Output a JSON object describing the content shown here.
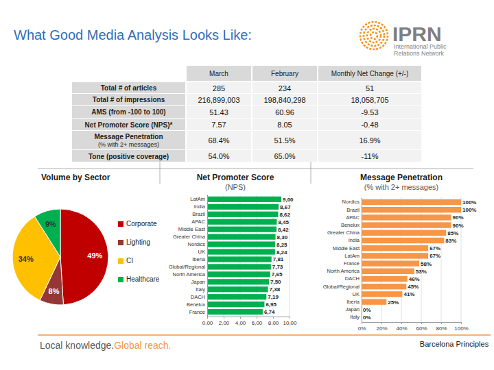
{
  "header": {
    "title": "What Good Media Analysis Looks Like:",
    "logo": {
      "name": "IPRN",
      "lines": [
        "International Public",
        "Relations Network"
      ]
    }
  },
  "table": {
    "columns": [
      "March",
      "February",
      "Monthly Net Change (+/-)"
    ],
    "rows": [
      {
        "label": [
          "Total # of articles"
        ],
        "cells": [
          "285",
          "234",
          "51"
        ]
      },
      {
        "label": [
          "Total # of impressions"
        ],
        "cells": [
          "216,899,003",
          "198,840,298",
          "18,058,705"
        ]
      },
      {
        "label": [
          "AMS (from -100 to 100)"
        ],
        "cells": [
          "51.43",
          "60.96",
          "-9.53"
        ]
      },
      {
        "label": [
          "Net Promoter Score (NPS)*"
        ],
        "cells": [
          "7.57",
          "8.05",
          "-0.48"
        ]
      },
      {
        "label": [
          "Message Penetration",
          "(% with 2+ messages)"
        ],
        "cells": [
          "68.4%",
          "51.5%",
          "16.9%"
        ]
      },
      {
        "label": [
          "Tone (positive coverage)"
        ],
        "cells": [
          "54.0%",
          "65.0%",
          "-11%"
        ]
      }
    ]
  },
  "chart_data": [
    {
      "type": "pie",
      "title": "Volume by Sector",
      "categories": [
        "Corporate",
        "Lighting",
        "CI",
        "Healthcare"
      ],
      "values": [
        49,
        8,
        34,
        9
      ],
      "value_labels": [
        "49%",
        "8%",
        "34%",
        "9%"
      ],
      "colors": [
        "#c00000",
        "#953735",
        "#ffc000",
        "#00b050"
      ],
      "legend": "right",
      "data_labels": true
    },
    {
      "type": "bar",
      "orientation": "horizontal",
      "title": "Net Promoter Score",
      "subtitle": "(NPS)",
      "categories": [
        "LatAm",
        "India",
        "Brazil",
        "APAC",
        "Middle East",
        "Greater China",
        "Nordics",
        "UK",
        "Iberia",
        "Global/Regional",
        "North America",
        "Japan",
        "Italy",
        "DACH",
        "Benelux",
        "France"
      ],
      "values": [
        9.0,
        8.67,
        8.62,
        8.45,
        8.42,
        8.3,
        8.25,
        8.24,
        7.81,
        7.73,
        7.65,
        7.5,
        7.38,
        7.19,
        6.95,
        6.74
      ],
      "value_labels": [
        "9,00",
        "8,67",
        "8,62",
        "8,45",
        "8,42",
        "8,30",
        "8,25",
        "8,24",
        "7,81",
        "7,73",
        "7,65",
        "7,50",
        "7,38",
        "7,19",
        "6,95",
        "6,74"
      ],
      "color": "#00b050",
      "xlim": [
        0,
        10
      ],
      "xticks": [
        {
          "value": 0,
          "label": "0,00"
        },
        {
          "value": 2,
          "label": "2,00"
        },
        {
          "value": 4,
          "label": "4,00"
        },
        {
          "value": 6,
          "label": "6,00"
        },
        {
          "value": 8,
          "label": "8,00"
        },
        {
          "value": 10,
          "label": "10,00"
        }
      ],
      "grid": true,
      "data_labels": true
    },
    {
      "type": "bar",
      "orientation": "horizontal",
      "title": "Message Penetration",
      "subtitle": "(% with 2+ messages)",
      "categories": [
        "Nordics",
        "Brazil",
        "APAC",
        "Benelux",
        "Greater China",
        "India",
        "Middle East",
        "LatAm",
        "France",
        "North America",
        "DACH",
        "Global/Regional",
        "UK",
        "Iberia",
        "Japan",
        "Italy"
      ],
      "values": [
        100,
        100,
        90,
        90,
        85,
        83,
        67,
        67,
        58,
        53,
        46,
        45,
        41,
        25,
        0,
        0
      ],
      "value_labels": [
        "100%",
        "100%",
        "90%",
        "90%",
        "85%",
        "83%",
        "67%",
        "67%",
        "58%",
        "53%",
        "46%",
        "45%",
        "41%",
        "25%",
        "0%",
        "0%"
      ],
      "color": "#f79646",
      "xlim": [
        0,
        100
      ],
      "xticks": [
        {
          "value": 0,
          "label": "0%"
        },
        {
          "value": 20,
          "label": "20%"
        },
        {
          "value": 40,
          "label": "40%"
        },
        {
          "value": 60,
          "label": "60%"
        },
        {
          "value": 80,
          "label": "80%"
        },
        {
          "value": 100,
          "label": "100%"
        }
      ],
      "grid": true,
      "data_labels": true
    }
  ],
  "footer": {
    "tagline": [
      "Local knowledge.",
      "Global reach."
    ],
    "note": "Barcelona Principles"
  }
}
